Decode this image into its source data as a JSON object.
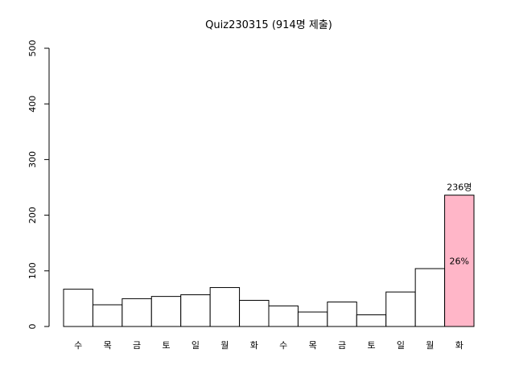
{
  "chart_data": {
    "type": "bar",
    "title": "Quiz230315 (914명 제출)",
    "xlabel": "",
    "ylabel": "",
    "ylim": [
      0,
      500
    ],
    "yticks": [
      0,
      100,
      200,
      300,
      400,
      500
    ],
    "grid": false,
    "categories": [
      "수",
      "목",
      "금",
      "토",
      "일",
      "월",
      "화",
      "수",
      "목",
      "금",
      "토",
      "일",
      "월",
      "화"
    ],
    "values": [
      67,
      39,
      50,
      54,
      57,
      70,
      47,
      37,
      26,
      44,
      21,
      62,
      104,
      236
    ],
    "default_fill": "#ffffff",
    "highlight": {
      "index": 13,
      "fill": "#ffb6c8",
      "top_label": "236명",
      "inner_label": "26%"
    }
  }
}
